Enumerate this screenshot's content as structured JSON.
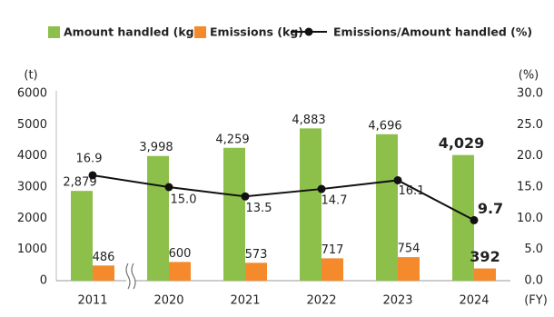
{
  "chart_data": {
    "type": "bar",
    "categories": [
      "2011",
      "2020",
      "2021",
      "2022",
      "2023",
      "2024"
    ],
    "x_unit": "(FY)",
    "y_unit": "(t)",
    "y2_unit": "(%)",
    "ylim": [
      0,
      6000
    ],
    "yticks": [
      0,
      1000,
      2000,
      3000,
      4000,
      5000,
      6000
    ],
    "y2lim": [
      0,
      30
    ],
    "y2ticks": [
      {
        "value": 0,
        "label": "0.0"
      },
      {
        "value": 5,
        "label": "5.0"
      },
      {
        "value": 10,
        "label": "10.0"
      },
      {
        "value": 15,
        "label": "15.0"
      },
      {
        "value": 20,
        "label": "20.0"
      },
      {
        "value": 25,
        "label": "25.0"
      },
      {
        "value": 30,
        "label": "30.0"
      }
    ],
    "grid": false,
    "series": [
      {
        "name": "Amount handled (kg)",
        "color": "#8dc04a",
        "values": [
          2879,
          3998,
          4259,
          4883,
          4696,
          4029
        ],
        "value_labels": [
          "2,879",
          "3,998",
          "4,259",
          "4,883",
          "4,696",
          "4,029"
        ]
      },
      {
        "name": "Emissions (kg)",
        "color": "#f58a2c",
        "values": [
          486,
          600,
          573,
          717,
          754,
          392
        ]
      },
      {
        "name": "Emissions/Amount handled (%)",
        "type": "line",
        "axis": "y2",
        "color": "#111111",
        "values": [
          16.9,
          15.0,
          13.5,
          14.7,
          16.1,
          9.7
        ],
        "value_labels": [
          "16.9",
          "15.0",
          "13.5",
          "14.7",
          "16.1",
          "9.7"
        ]
      }
    ]
  }
}
